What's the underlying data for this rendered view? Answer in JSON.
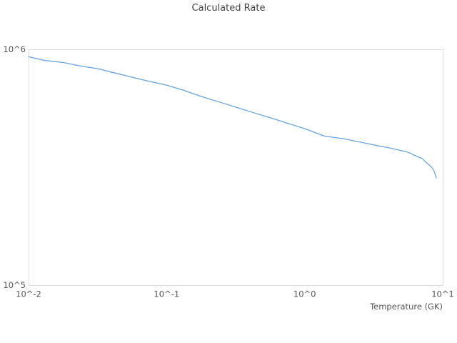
{
  "chart_data": {
    "type": "line",
    "title": "Calculated Rate",
    "xlabel": "Temperature (GK)",
    "ylabel": "",
    "x_scale": "log",
    "y_scale": "log",
    "xlim": [
      0.01,
      10
    ],
    "ylim": [
      100000,
      1000000
    ],
    "grid": false,
    "legend": null,
    "x_ticks": [
      {
        "label": "10^-2",
        "value": 0.01
      },
      {
        "label": "10^-1",
        "value": 0.1
      },
      {
        "label": "10^0",
        "value": 1
      },
      {
        "label": "10^1",
        "value": 10
      }
    ],
    "y_ticks": [
      {
        "label": "10^5",
        "value": 100000
      },
      {
        "label": "10^6",
        "value": 1000000
      }
    ],
    "series": [
      {
        "name": "calculated-rate",
        "x": [
          0.01,
          0.013,
          0.018,
          0.024,
          0.032,
          0.042,
          0.056,
          0.075,
          0.1,
          0.13,
          0.18,
          0.24,
          0.32,
          0.42,
          0.56,
          0.75,
          1.0,
          1.4,
          1.9,
          2.7,
          3.4,
          4.1,
          4.9,
          5.6,
          6.4,
          7.1,
          7.7,
          8.2,
          8.6,
          9.0
        ],
        "y": [
          930000,
          898000,
          878000,
          849000,
          827000,
          794000,
          762000,
          731000,
          705000,
          673000,
          630000,
          598000,
          568000,
          540000,
          513000,
          486000,
          461000,
          428000,
          418000,
          401000,
          390000,
          382000,
          373000,
          366000,
          353000,
          344000,
          329000,
          319000,
          308000,
          285000
        ]
      }
    ],
    "colors": {
      "line": "#66a3e3",
      "frame": "#dcdcdc",
      "title_text": "#434343",
      "tick_text": "#555555",
      "background": "#ffffff"
    }
  }
}
